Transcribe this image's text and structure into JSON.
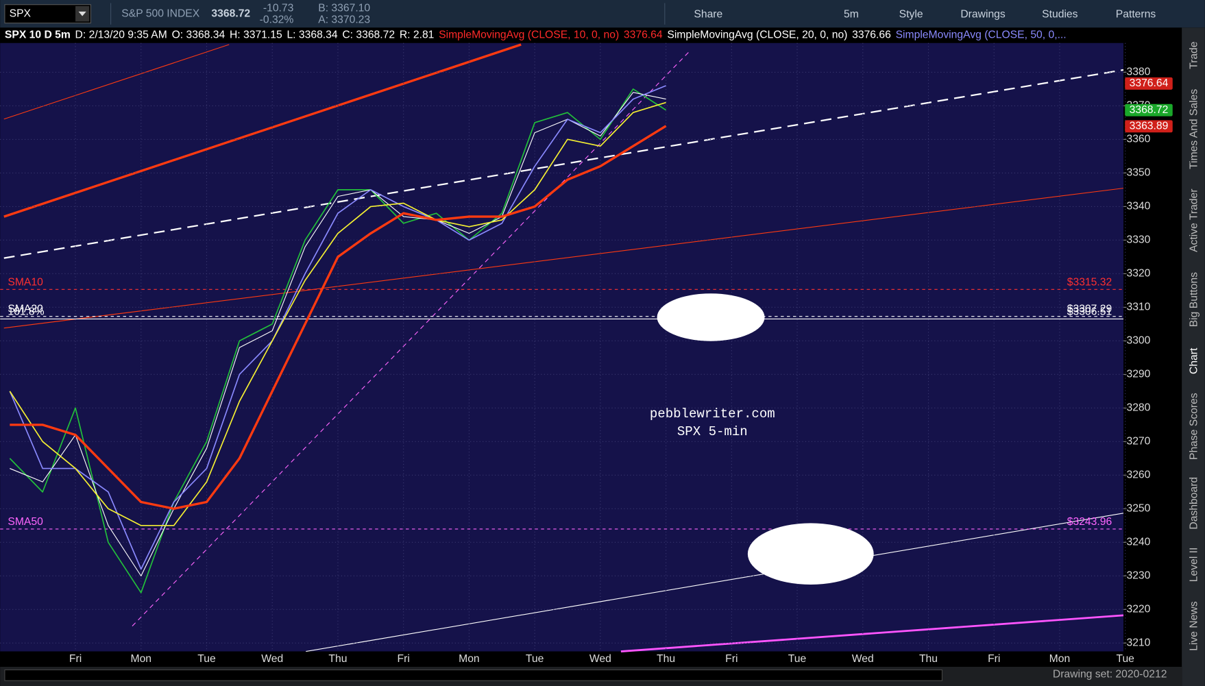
{
  "toolbar": {
    "symbol": "SPX",
    "name": "S&P 500 INDEX",
    "last": "3368.72",
    "change": "-10.73",
    "change_pct": "-0.32%",
    "bid": "B: 3367.10",
    "ask": "A: 3370.23",
    "buttons": [
      "Share",
      "5m",
      "Style",
      "Drawings",
      "Studies",
      "Patterns"
    ]
  },
  "header": {
    "items": [
      "SPX 10 D 5m",
      "D: 2/13/20 9:35 AM",
      "O: 3368.34",
      "H: 3371.15",
      "L: 3368.34",
      "C: 3368.72",
      "R: 2.81"
    ],
    "studies": [
      {
        "name": "SimpleMovingAvg (CLOSE, 10, 0, no)",
        "value": "3376.64",
        "color": "#ff2a2a"
      },
      {
        "name": "SimpleMovingAvg (CLOSE, 20, 0, no)",
        "value": "3376.66",
        "color": "#ffffff"
      },
      {
        "name": "SimpleMovingAvg (CLOSE, 50, 0,...",
        "color": "#8a8aff"
      }
    ]
  },
  "sidebar": [
    "Trade",
    "Times And Sales",
    "Active Trader",
    "Big Buttons",
    "Chart",
    "Phase Scores",
    "Dashboard",
    "Level II",
    "Live News"
  ],
  "footer": {
    "drawing_set": "Drawing set: 2020-0212"
  },
  "chart_data": {
    "type": "line",
    "watermark": [
      "pebblewriter.com",
      "SPX 5-min"
    ],
    "categories": [
      null,
      null,
      "Fri",
      null,
      "Mon",
      null,
      "Tue",
      null,
      "Wed",
      null,
      "Thu",
      null,
      "Fri",
      null,
      "Mon",
      null,
      "Tue",
      null,
      "Wed",
      null,
      "Thu",
      null,
      "Fri",
      null,
      "Tue",
      null,
      "Wed",
      null,
      "Thu",
      null,
      "Fri",
      null,
      "Mon",
      null,
      "Tue"
    ],
    "series": [
      {
        "color": "#22c03a",
        "values": [
          3265,
          3255,
          3280,
          3240,
          3225,
          3252,
          3270,
          3300,
          3305,
          3330,
          3345,
          3345,
          3335,
          3338,
          3330,
          3338,
          3365,
          3368,
          3360,
          3375,
          3368.72,
          null,
          null,
          null,
          null,
          null,
          null,
          null,
          null,
          null,
          null,
          null,
          null,
          null,
          null
        ]
      },
      {
        "color": "#ffffff",
        "values": [
          3262,
          3258,
          3272,
          3245,
          3230,
          3250,
          3268,
          3298,
          3303,
          3328,
          3343,
          3345,
          3337,
          3336,
          3332,
          3337,
          3362,
          3366,
          3361,
          3374,
          3372,
          null,
          null,
          null,
          null,
          null,
          null,
          null,
          null,
          null,
          null,
          null,
          null,
          null,
          null
        ]
      },
      {
        "color": "#8a8aff",
        "values": [
          3285,
          3262,
          3262,
          3255,
          3232,
          3252,
          3262,
          3290,
          3300,
          3320,
          3338,
          3345,
          3340,
          3336,
          3330,
          3335,
          3352,
          3366,
          3362,
          3372,
          3376,
          null,
          null,
          null,
          null,
          null,
          null,
          null,
          null,
          null,
          null,
          null,
          null,
          null,
          null
        ]
      },
      {
        "color": "#f5f032",
        "values": [
          3285,
          3270,
          3262,
          3250,
          3245,
          3245,
          3258,
          3282,
          3300,
          3318,
          3332,
          3340,
          3341,
          3336,
          3334,
          3336,
          3345,
          3360,
          3358,
          3368,
          3371,
          null,
          null,
          null,
          null,
          null,
          null,
          null,
          null,
          null,
          null,
          null,
          null,
          null,
          null
        ]
      },
      {
        "color": "#ff3a10",
        "values": [
          3275,
          3275,
          3272,
          3262,
          3252,
          3250,
          3252,
          3265,
          3285,
          3305,
          3325,
          3332,
          3338,
          3336,
          3337,
          3337,
          3340,
          3348,
          3352,
          3358,
          3364,
          null,
          null,
          null,
          null,
          null,
          null,
          null,
          null,
          null,
          null,
          null,
          null,
          null,
          null
        ]
      }
    ],
    "ylim": [
      3207.5,
      3388.7
    ],
    "yticks": [
      3210,
      3220,
      3230,
      3240,
      3250,
      3260,
      3270,
      3280,
      3290,
      3300,
      3310,
      3320,
      3330,
      3340,
      3350,
      3360,
      3370,
      3380
    ],
    "grid": true,
    "price_tags": [
      {
        "value": 3376.64,
        "color": "#d0201a"
      },
      {
        "value": 3368.72,
        "color": "#1aa82a"
      },
      {
        "value": 3363.89,
        "color": "#d0201a"
      }
    ],
    "levels": [
      {
        "name": "SMA10",
        "value": 3315.32,
        "label": "$3315.32",
        "color": "#ff3030",
        "dash": "4 4"
      },
      {
        "name": "SMA20",
        "value": 3307.29,
        "label": "$3307.29",
        "color": "#ffffff",
        "dash": "4 4"
      },
      {
        "name": "161.8%",
        "value": 3306.51,
        "label": "$3306.51",
        "color": "#ffffff",
        "dash": ""
      },
      {
        "name": "SMA50",
        "value": 3243.96,
        "label": "$3243.96",
        "color": "#ff66ff",
        "dash": "4 4"
      }
    ]
  }
}
